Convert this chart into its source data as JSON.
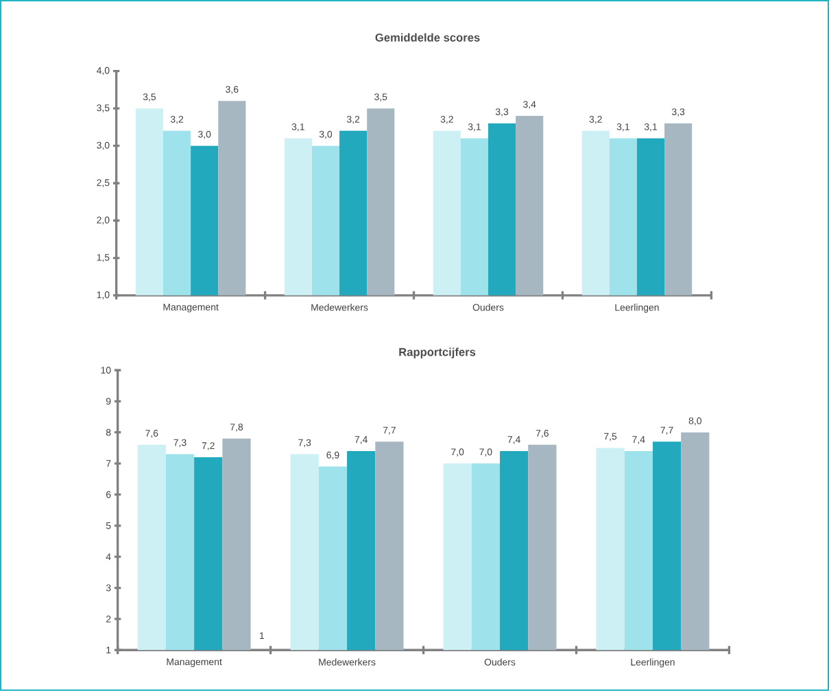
{
  "chart_data": [
    {
      "type": "bar",
      "title": "Gemiddelde scores",
      "categories": [
        "Management",
        "Medewerkers",
        "Ouders",
        "Leerlingen"
      ],
      "ylim": [
        1,
        4
      ],
      "yticks": [
        {
          "value": 1,
          "label": "1,0"
        },
        {
          "value": 1.5,
          "label": "1,5"
        },
        {
          "value": 2,
          "label": "2,0"
        },
        {
          "value": 2.5,
          "label": "2,5"
        },
        {
          "value": 3,
          "label": "3,0"
        },
        {
          "value": 3.5,
          "label": "3,5"
        },
        {
          "value": 4,
          "label": "4,0"
        }
      ],
      "series": [
        {
          "color": "#cdf0f4",
          "values": [
            3.5,
            3.1,
            3.2,
            3.2
          ],
          "value_labels": [
            "3,5",
            "3,1",
            "3,2",
            "3,2"
          ]
        },
        {
          "color": "#9ee3ec",
          "values": [
            3.2,
            3.0,
            3.1,
            3.1
          ],
          "value_labels": [
            "3,2",
            "3,0",
            "3,1",
            "3,1"
          ]
        },
        {
          "color": "#22a9bd",
          "values": [
            3.0,
            3.2,
            3.3,
            3.1
          ],
          "value_labels": [
            "3,0",
            "3,2",
            "3,3",
            "3,1"
          ]
        },
        {
          "color": "#a7b7c2",
          "values": [
            3.6,
            3.5,
            3.4,
            3.3
          ],
          "value_labels": [
            "3,6",
            "3,5",
            "3,4",
            "3,3"
          ]
        }
      ]
    },
    {
      "type": "bar",
      "title": "Rapportcijfers",
      "categories": [
        "Management",
        "Medewerkers",
        "Ouders",
        "Leerlingen"
      ],
      "ylim": [
        1,
        10
      ],
      "yticks": [
        1,
        2,
        3,
        4,
        5,
        6,
        7,
        8,
        9,
        10
      ],
      "series": [
        {
          "color": "#cdf0f4",
          "values": [
            7.6,
            7.3,
            7.0,
            7.5
          ],
          "value_labels": [
            "7,6",
            "7,3",
            "7,0",
            "7,5"
          ]
        },
        {
          "color": "#9ee3ec",
          "values": [
            7.3,
            6.9,
            7.0,
            7.4
          ],
          "value_labels": [
            "7,3",
            "6,9",
            "7,0",
            "7,4"
          ]
        },
        {
          "color": "#22a9bd",
          "values": [
            7.2,
            7.4,
            7.4,
            7.7
          ],
          "value_labels": [
            "7,2",
            "7,4",
            "7,4",
            "7,7"
          ]
        },
        {
          "color": "#a7b7c2",
          "values": [
            7.8,
            7.7,
            7.6,
            8.0
          ],
          "value_labels": [
            "7,8",
            "7,7",
            "7,6",
            "8,0"
          ]
        }
      ],
      "annotations": [
        "1"
      ]
    }
  ]
}
